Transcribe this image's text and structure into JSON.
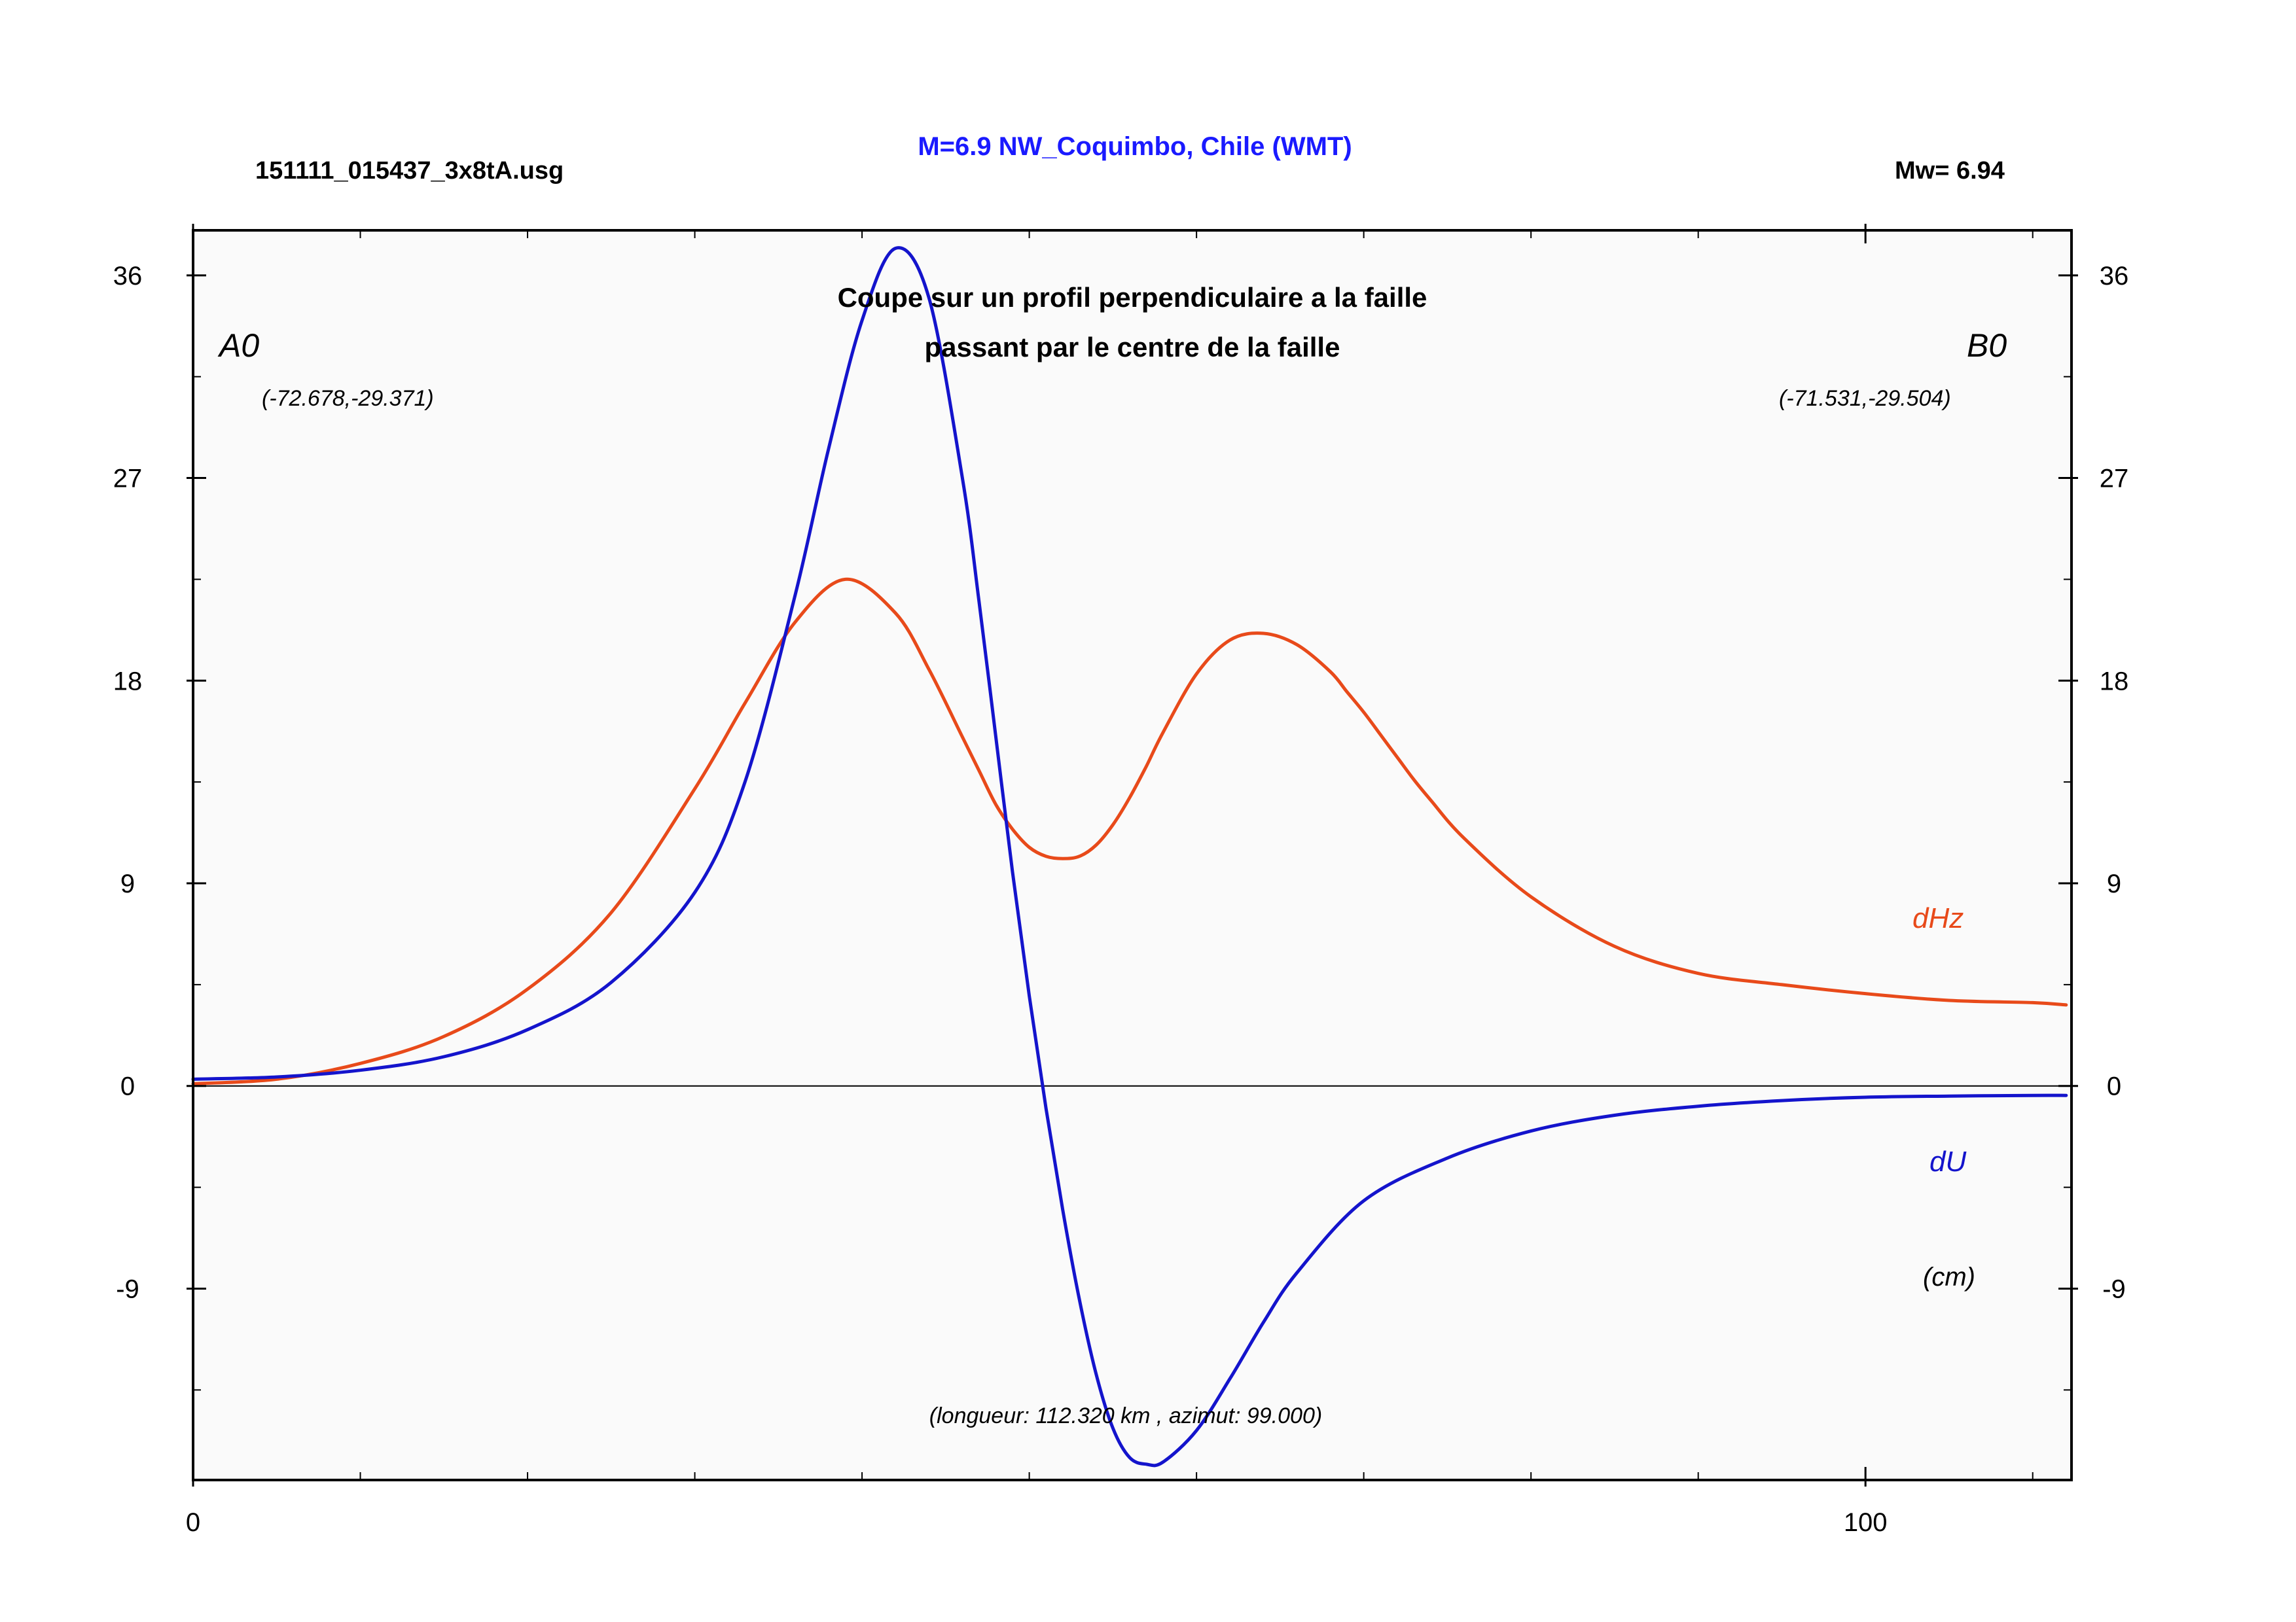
{
  "header": {
    "file_name": "151111_015437_3x8tA.usg",
    "event_title": "M=6.9 NW_Coquimbo, Chile (WMT)",
    "magnitude": "Mw= 6.94"
  },
  "colors": {
    "background": "#ffffff",
    "plot_background": "#fafafa",
    "dHz": "#e84a1a",
    "dU": "#1414cc",
    "title_blue": "#1a1aff",
    "zero_line": "#000000"
  },
  "chart_data": {
    "type": "line",
    "title": "Coupe sur un profil perpendiculaire a la faille",
    "subtitle": "passant par le centre de la faille",
    "xlim": [
      0,
      112.32
    ],
    "ylim": [
      -17.5,
      38
    ],
    "x_ticks": [
      0,
      100
    ],
    "y_ticks": [
      -9,
      0,
      9,
      18,
      27,
      36
    ],
    "y_tick_labels": [
      "-9",
      "0",
      "9",
      "18",
      "27",
      "36"
    ],
    "x_tick_labels": [
      "0",
      "100"
    ],
    "grid": false,
    "zero_line": true,
    "unit_label": "(cm)",
    "annotations": {
      "start_label": "A0",
      "start_coords": "(-72.678,-29.371)",
      "end_label": "B0",
      "end_coords": "(-71.531,-29.504)",
      "profile_info": "(longueur: 112.320 km , azimut: 99.000)"
    },
    "series": [
      {
        "name": "dHz",
        "x": [
          0,
          5,
          10,
          15,
          20,
          25,
          30,
          33,
          36,
          39,
          42,
          44,
          46,
          47,
          48,
          49,
          50,
          51,
          52,
          53,
          54,
          55,
          56,
          57,
          58,
          60,
          62,
          64,
          66,
          68,
          69,
          70,
          71,
          72,
          73,
          74,
          76,
          80,
          85,
          90,
          95,
          100,
          105,
          110,
          112
        ],
        "y": [
          0.1,
          0.3,
          1.0,
          2.2,
          4.3,
          7.7,
          13.2,
          17.0,
          20.6,
          22.5,
          21.0,
          18.5,
          15.5,
          14.0,
          12.5,
          11.4,
          10.6,
          10.2,
          10.1,
          10.2,
          10.7,
          11.6,
          12.8,
          14.2,
          15.7,
          18.3,
          19.8,
          20.1,
          19.6,
          18.4,
          17.5,
          16.6,
          15.6,
          14.6,
          13.6,
          12.7,
          11.0,
          8.4,
          6.2,
          5.0,
          4.5,
          4.1,
          3.8,
          3.7,
          3.6
        ]
      },
      {
        "name": "dU",
        "x": [
          0,
          5,
          10,
          15,
          20,
          25,
          30,
          33,
          36,
          38,
          40,
          42,
          44,
          46,
          47,
          48,
          49,
          50,
          51,
          52,
          53,
          54,
          55,
          56,
          57,
          58,
          60,
          62,
          64,
          66,
          70,
          75,
          80,
          85,
          90,
          95,
          100,
          105,
          110,
          112
        ],
        "y": [
          0.3,
          0.4,
          0.7,
          1.3,
          2.5,
          4.6,
          8.6,
          13.5,
          21.8,
          28.3,
          34.0,
          37.2,
          35.0,
          27.0,
          21.5,
          15.5,
          9.5,
          4.0,
          -1.0,
          -5.5,
          -9.5,
          -12.8,
          -15.2,
          -16.5,
          -16.8,
          -16.7,
          -15.3,
          -13.0,
          -10.5,
          -8.3,
          -5.1,
          -3.2,
          -2.0,
          -1.3,
          -0.9,
          -0.65,
          -0.5,
          -0.45,
          -0.42,
          -0.42
        ]
      }
    ]
  }
}
